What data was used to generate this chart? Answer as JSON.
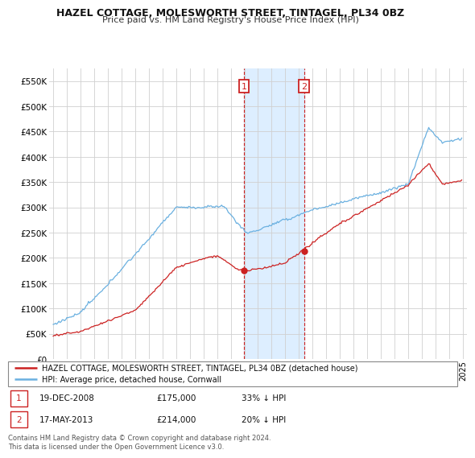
{
  "title": "HAZEL COTTAGE, MOLESWORTH STREET, TINTAGEL, PL34 0BZ",
  "subtitle": "Price paid vs. HM Land Registry's House Price Index (HPI)",
  "legend_line1": "HAZEL COTTAGE, MOLESWORTH STREET, TINTAGEL, PL34 0BZ (detached house)",
  "legend_line2": "HPI: Average price, detached house, Cornwall",
  "transaction1_date": "19-DEC-2008",
  "transaction1_price": 175000,
  "transaction1_pct": "33% ↓ HPI",
  "transaction2_date": "17-MAY-2013",
  "transaction2_price": 214000,
  "transaction2_pct": "20% ↓ HPI",
  "footer": "Contains HM Land Registry data © Crown copyright and database right 2024.\nThis data is licensed under the Open Government Licence v3.0.",
  "hpi_color": "#6ab0e0",
  "price_color": "#cc2222",
  "highlight_color": "#ddeeff",
  "ylim": [
    0,
    575000
  ],
  "yticks": [
    0,
    50000,
    100000,
    150000,
    200000,
    250000,
    300000,
    350000,
    400000,
    450000,
    500000,
    550000
  ],
  "transaction1_x": 2008.96,
  "transaction2_x": 2013.38
}
